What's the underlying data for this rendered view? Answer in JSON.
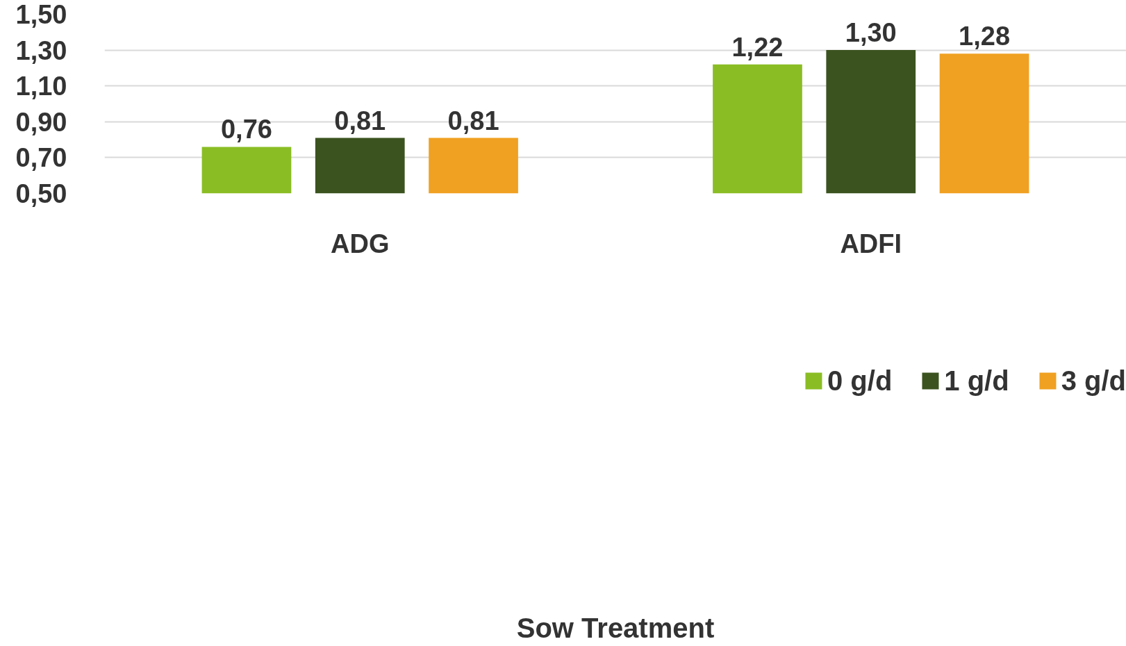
{
  "chart_data": {
    "type": "bar",
    "categories": [
      "ADG",
      "ADFI"
    ],
    "legend_title": "Sow Treatment",
    "legend": "bottom",
    "grid": "y",
    "ylim": [
      0.5,
      1.5
    ],
    "yticks": [
      {
        "value": 0.5,
        "label": "0,50"
      },
      {
        "value": 0.7,
        "label": "0,70"
      },
      {
        "value": 0.9,
        "label": "0,90"
      },
      {
        "value": 1.1,
        "label": "1,10"
      },
      {
        "value": 1.3,
        "label": "1,30"
      },
      {
        "value": 1.5,
        "label": "1,50"
      }
    ],
    "series": [
      {
        "name": "0 g/d",
        "color": "#8abd24",
        "values": [
          0.76,
          1.22
        ],
        "value_labels": [
          "0,76",
          "1,22"
        ]
      },
      {
        "name": "1 g/d",
        "color": "#3b531f",
        "values": [
          0.81,
          1.3
        ],
        "value_labels": [
          "0,81",
          "1,30"
        ]
      },
      {
        "name": "3 g/d",
        "color": "#f0a121",
        "values": [
          0.81,
          1.28
        ],
        "value_labels": [
          "0,81",
          "1,28"
        ]
      }
    ]
  }
}
